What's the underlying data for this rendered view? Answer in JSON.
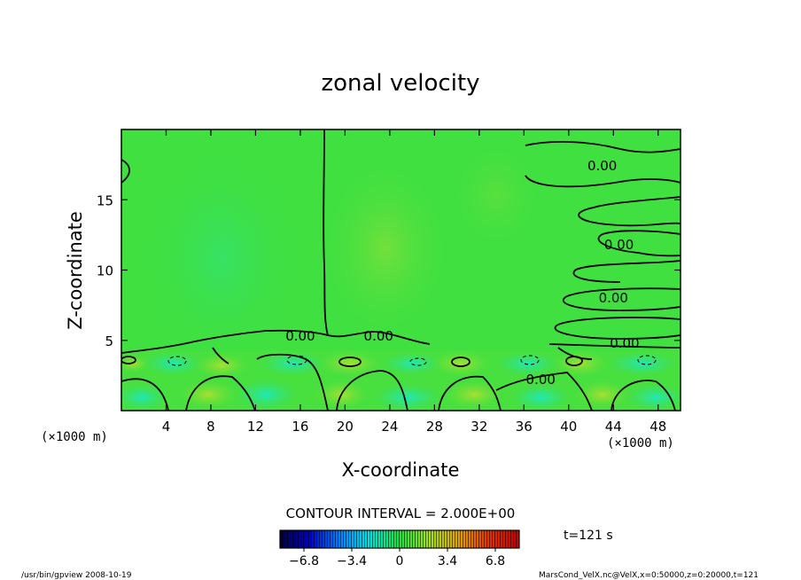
{
  "chart_data": {
    "type": "heatmap",
    "title": "zonal velocity",
    "xlabel": "X-coordinate",
    "ylabel": "Z-coordinate",
    "x_unit": "(×1000 m)",
    "xlim": [
      0,
      50
    ],
    "ylim": [
      0,
      20
    ],
    "x_ticks": [
      4,
      8,
      12,
      16,
      20,
      24,
      28,
      32,
      36,
      40,
      44,
      48
    ],
    "y_ticks": [
      5,
      10,
      15
    ],
    "contour_interval_label": "CONTOUR INTERVAL = 2.000E+00",
    "contour_labels": [
      {
        "text": "0.00",
        "x": 43,
        "z": 17.4
      },
      {
        "text": "0.00",
        "x": 44.5,
        "z": 11.8
      },
      {
        "text": "0.00",
        "x": 44,
        "z": 8
      },
      {
        "text": "0.00",
        "x": 45,
        "z": 4.8
      },
      {
        "text": "0.00",
        "x": 37.5,
        "z": 2.2
      },
      {
        "text": "0.00",
        "x": 16,
        "z": 5.3
      },
      {
        "text": "0.00",
        "x": 23,
        "z": 5.3
      }
    ],
    "colorbar": {
      "ticks": [
        "−6.8",
        "−3.4",
        "0",
        "3.4",
        "6.8"
      ],
      "tick_values": [
        -6.8,
        -3.4,
        0,
        3.4,
        6.8
      ],
      "range": [
        -8.5,
        8.5
      ]
    },
    "time_label": "t=121 s",
    "colors": {
      "background": "#40e040",
      "near_zero": "#3ce43c",
      "positive": "#7ae040",
      "negative": "#2ce69a",
      "contour": "#000000"
    }
  },
  "footer": {
    "left": "/usr/bin/gpview  2008-10-19",
    "right": "MarsCond_VelX.nc@VelX,x=0:50000,z=0:20000,t=121"
  }
}
